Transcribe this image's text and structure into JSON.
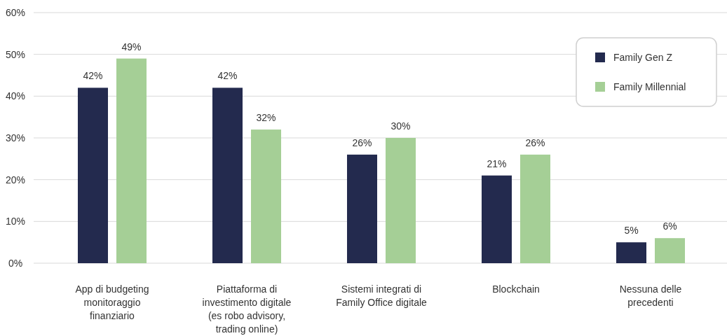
{
  "chart_data": {
    "type": "bar",
    "categories": [
      "App di budgeting\nmonitoraggio\nfinanziario",
      "Piattaforma di\ninvestimento digitale\n(es robo advisory,\ntrading online)",
      "Sistemi integrati di\nFamily Office digitale",
      "Blockchain",
      "Nessuna delle\nprecedenti"
    ],
    "series": [
      {
        "name": "Family Gen Z",
        "color": "#232a4e",
        "values": [
          42,
          42,
          26,
          21,
          5
        ],
        "value_labels": [
          "42%",
          "42%",
          "26%",
          "21%",
          "5%"
        ]
      },
      {
        "name": "Family Millennial",
        "color": "#a5cf96",
        "values": [
          49,
          32,
          30,
          26,
          6
        ],
        "value_labels": [
          "49%",
          "32%",
          "30%",
          "26%",
          "6%"
        ]
      }
    ],
    "ylim": [
      0,
      60
    ],
    "yticks": [
      {
        "value": 0,
        "label": "0%"
      },
      {
        "value": 10,
        "label": "10%"
      },
      {
        "value": 20,
        "label": "20%"
      },
      {
        "value": 30,
        "label": "30%"
      },
      {
        "value": 40,
        "label": "40%"
      },
      {
        "value": 50,
        "label": "50%"
      },
      {
        "value": 60,
        "label": "60%"
      }
    ],
    "grid": "y",
    "legend": "top right"
  }
}
